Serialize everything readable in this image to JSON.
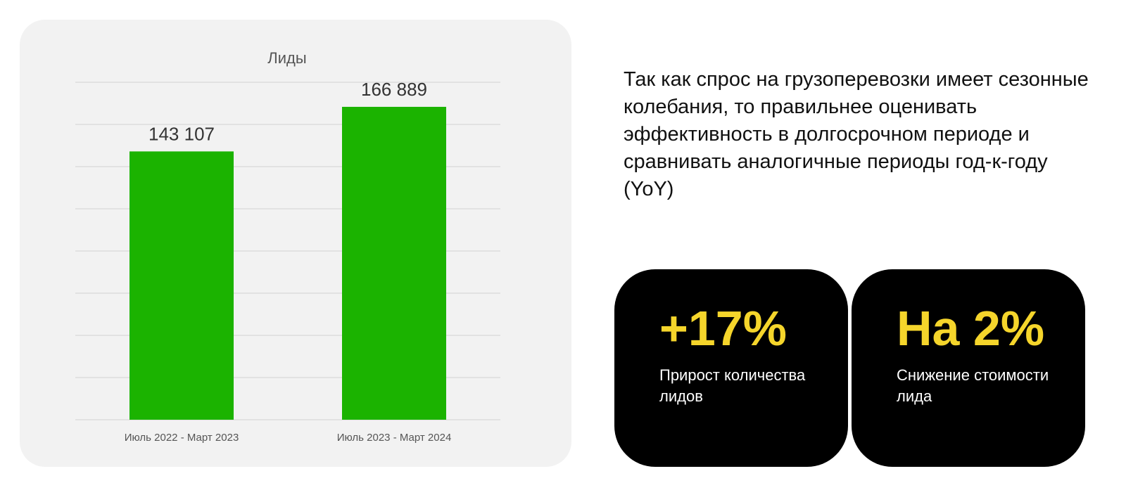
{
  "chart_data": {
    "type": "bar",
    "title": "Лиды",
    "categories": [
      "Июль 2022 - Март 2023",
      "Июль 2023 - Март 2024"
    ],
    "values": [
      143107,
      166889
    ],
    "value_labels": [
      "143 107",
      "166 889"
    ],
    "ylim": [
      0,
      180000
    ],
    "grid": true,
    "bar_color": "#1bb300"
  },
  "description": "Так как спрос на грузоперевозки имеет сезонные колебания, то правильнее оценивать эффективность в долгосрочном периоде и сравнивать аналогичные периоды год-к-году (YoY)",
  "kpis": [
    {
      "value": "+17%",
      "caption": "Прирост количества лидов"
    },
    {
      "value": "На 2%",
      "caption": "Снижение стоимости лида"
    }
  ],
  "colors": {
    "accent": "#f5d52b",
    "card_bg": "#000000",
    "chart_bg": "#f2f2f2"
  }
}
